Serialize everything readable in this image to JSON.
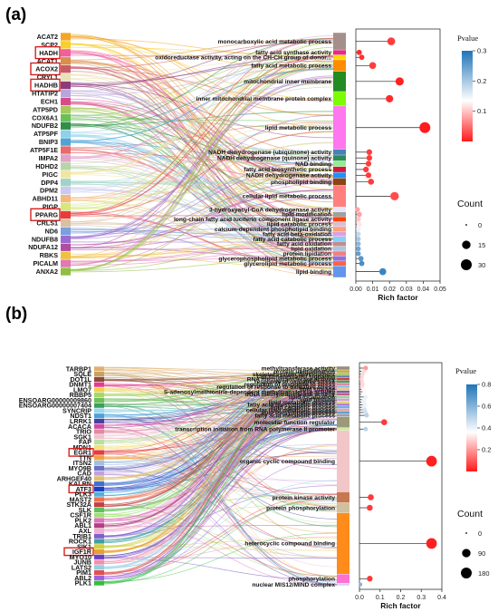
{
  "chart_data": [
    {
      "panel": "(a)",
      "type": "sankey-lollipop",
      "genes": [
        {
          "name": "ACAT2",
          "highlight": false,
          "color": "#f4a623"
        },
        {
          "name": "SCP2",
          "highlight": false,
          "color": "#f7d02a"
        },
        {
          "name": "HADH",
          "highlight": true,
          "color": "#f25ea0"
        },
        {
          "name": "ACAT1",
          "highlight": false,
          "color": "#d98e4a"
        },
        {
          "name": "ACOX2",
          "highlight": true,
          "color": "#c75b68"
        },
        {
          "name": "CRYL1",
          "highlight": false,
          "color": "#e9e2b8"
        },
        {
          "name": "HADHB",
          "highlight": true,
          "color": "#8e3b7b"
        },
        {
          "name": "HTATIP2",
          "highlight": false,
          "color": "#b7a6d9"
        },
        {
          "name": "ECH1",
          "highlight": false,
          "color": "#d84b8b"
        },
        {
          "name": "ATP5PD",
          "highlight": false,
          "color": "#a7c85a"
        },
        {
          "name": "COX6A1",
          "highlight": false,
          "color": "#6bbf59"
        },
        {
          "name": "NDUFB2",
          "highlight": false,
          "color": "#2f8f46"
        },
        {
          "name": "ATP5PF",
          "highlight": false,
          "color": "#8ed1e8"
        },
        {
          "name": "BNIP3",
          "highlight": false,
          "color": "#4fa3d9"
        },
        {
          "name": "ATP5F1E",
          "highlight": false,
          "color": "#e86a6a"
        },
        {
          "name": "IMPA2",
          "highlight": false,
          "color": "#e0a2c6"
        },
        {
          "name": "HDHD2",
          "highlight": false,
          "color": "#b8d4a8"
        },
        {
          "name": "PIGC",
          "highlight": false,
          "color": "#f0e6a0"
        },
        {
          "name": "DPP4",
          "highlight": false,
          "color": "#9fd3c7"
        },
        {
          "name": "DPM2",
          "highlight": false,
          "color": "#c9c9f2"
        },
        {
          "name": "ABHD11",
          "highlight": false,
          "color": "#f2b97c"
        },
        {
          "name": "PIGP",
          "highlight": false,
          "color": "#d6e87a"
        },
        {
          "name": "PPARG",
          "highlight": true,
          "color": "#e83b3b"
        },
        {
          "name": "CRLS1",
          "highlight": false,
          "color": "#d8c0a0"
        },
        {
          "name": "ND6",
          "highlight": false,
          "color": "#7a9fe0"
        },
        {
          "name": "NDUFB8",
          "highlight": false,
          "color": "#9a6ad0"
        },
        {
          "name": "NDUFA12",
          "highlight": false,
          "color": "#b04da0"
        },
        {
          "name": "RBKS",
          "highlight": false,
          "color": "#f0c040"
        },
        {
          "name": "PICALM",
          "highlight": false,
          "color": "#e07ab0"
        },
        {
          "name": "ANXA2",
          "highlight": false,
          "color": "#8fbf3f"
        }
      ],
      "terms": [
        {
          "name": "monocarboxylic acid metabolic process",
          "color": "#a58f8a",
          "rich_factor": 0.021,
          "pvalue": 0.02,
          "count": 12
        },
        {
          "name": "fatty acid synthase activity",
          "color": "#e7298a",
          "rich_factor": 0.002,
          "pvalue": 0.01,
          "count": 3
        },
        {
          "name": "oxidoreductase activity, acting on the CH-CH group of donor...",
          "color": "#ffd700",
          "rich_factor": 0.0035,
          "pvalue": 0.015,
          "count": 3
        },
        {
          "name": "fatty acid metabolic process",
          "color": "#ff8c00",
          "rich_factor": 0.01,
          "pvalue": 0.02,
          "count": 8
        },
        {
          "name": "mitochondrial inner membrane",
          "color": "#228b22",
          "rich_factor": 0.026,
          "pvalue": 0.005,
          "count": 14
        },
        {
          "name": "inner mitochondrial membrane protein complex",
          "color": "#7cfc00",
          "rich_factor": 0.02,
          "pvalue": 0.01,
          "count": 10
        },
        {
          "name": "lipid metabolic process",
          "color": "#ff77ee",
          "rich_factor": 0.041,
          "pvalue": 0.001,
          "count": 30
        },
        {
          "name": "NADH dehydrogenase (ubiquinone) activity",
          "color": "#4682b4",
          "rich_factor": 0.008,
          "pvalue": 0.02,
          "count": 4
        },
        {
          "name": "NADH dehydrogenase (quinone) activity",
          "color": "#2e8b57",
          "rich_factor": 0.008,
          "pvalue": 0.02,
          "count": 4
        },
        {
          "name": "NAD binding",
          "color": "#90ee90",
          "rich_factor": 0.0075,
          "pvalue": 0.02,
          "count": 4
        },
        {
          "name": "fatty acid biosynthetic process",
          "color": "#dc143c",
          "rich_factor": 0.006,
          "pvalue": 0.02,
          "count": 4
        },
        {
          "name": "NADH dehydrogenase activity",
          "color": "#1e90ff",
          "rich_factor": 0.0075,
          "pvalue": 0.02,
          "count": 4
        },
        {
          "name": "phospholipid binding",
          "color": "#8b4513",
          "rich_factor": 0.009,
          "pvalue": 0.02,
          "count": 5
        },
        {
          "name": "cellular lipid metabolic process",
          "color": "#ff7f7f",
          "rich_factor": 0.023,
          "pvalue": 0.03,
          "count": 15
        },
        {
          "name": "3-hydroxyacyl-CoA dehydrogenase activity",
          "color": "#e6e6fa",
          "rich_factor": 0.001,
          "pvalue": 0.08,
          "count": 2
        },
        {
          "name": "lipid modification",
          "color": "#a0a0a0",
          "rich_factor": 0.002,
          "pvalue": 0.08,
          "count": 3
        },
        {
          "name": "long-chain fatty acid luciferin component ligase activity",
          "color": "#ff4500",
          "rich_factor": 0.0015,
          "pvalue": 0.1,
          "count": 2
        },
        {
          "name": "lipid catabolic process",
          "color": "#d8bfd8",
          "rich_factor": 0.002,
          "pvalue": 0.12,
          "count": 3
        },
        {
          "name": "calcium-dependent phospholipid binding",
          "color": "#ffa07a",
          "rich_factor": 0.0015,
          "pvalue": 0.15,
          "count": 2
        },
        {
          "name": "fatty acid beta-oxidation",
          "color": "#dda0dd",
          "rich_factor": 0.0015,
          "pvalue": 0.18,
          "count": 2
        },
        {
          "name": "fatty acid catabolic process",
          "color": "#87cefa",
          "rich_factor": 0.0015,
          "pvalue": 0.2,
          "count": 2
        },
        {
          "name": "fatty acid oxidation",
          "color": "#bc8f8f",
          "rich_factor": 0.0015,
          "pvalue": 0.22,
          "count": 2
        },
        {
          "name": "lipid oxidation",
          "color": "#b0c4de",
          "rich_factor": 0.0015,
          "pvalue": 0.24,
          "count": 2
        },
        {
          "name": "protein lipidation",
          "color": "#f08080",
          "rich_factor": 0.0015,
          "pvalue": 0.25,
          "count": 2
        },
        {
          "name": "glycerophospholipid metabolic process",
          "color": "#9370db",
          "rich_factor": 0.003,
          "pvalue": 0.26,
          "count": 3
        },
        {
          "name": "glycerolipid metabolic process",
          "color": "#ff6347",
          "rich_factor": 0.0035,
          "pvalue": 0.27,
          "count": 3
        },
        {
          "name": "lipid binding",
          "color": "#6495ed",
          "rich_factor": 0.016,
          "pvalue": 0.28,
          "count": 8
        }
      ],
      "xlabel": "Rich factor",
      "xlim": [
        0,
        0.05
      ],
      "xticks": [
        "0.00",
        "0.01",
        "0.02",
        "0.03",
        "0.04",
        "0.05"
      ],
      "xtick_values": [
        0,
        0.01,
        0.02,
        0.03,
        0.04,
        0.05
      ],
      "legend_pvalue": {
        "title": "Pvalue",
        "range": [
          0.0,
          0.3
        ],
        "ticks": [
          "0.3",
          "0.2",
          "0.1"
        ],
        "tick_values": [
          0.3,
          0.2,
          0.1
        ]
      },
      "legend_count": {
        "title": "Count",
        "sizes": [
          "0",
          "15",
          "30"
        ],
        "size_values": [
          0,
          15,
          30
        ]
      }
    },
    {
      "panel": "(b)",
      "type": "sankey-lollipop",
      "genes": [
        {
          "name": "TARBP1",
          "highlight": false,
          "color": "#e0b070"
        },
        {
          "name": "SQLE",
          "highlight": false,
          "color": "#c9a060"
        },
        {
          "name": "DOT1L",
          "highlight": false,
          "color": "#8c4a3a"
        },
        {
          "name": "DNMT1",
          "highlight": false,
          "color": "#e63a8a"
        },
        {
          "name": "LMO7",
          "highlight": false,
          "color": "#f0d050"
        },
        {
          "name": "RBBP5",
          "highlight": false,
          "color": "#a5d66a"
        },
        {
          "name": "ENSOARG00000009860",
          "highlight": false,
          "color": "#6fbf59"
        },
        {
          "name": "ENSOARG00000007404",
          "highlight": false,
          "color": "#3a9f5a"
        },
        {
          "name": "SYNCRIP",
          "highlight": false,
          "color": "#9ad7e8"
        },
        {
          "name": "NDST1",
          "highlight": false,
          "color": "#4fa0d8"
        },
        {
          "name": "LRRK1",
          "highlight": false,
          "color": "#4a3fa0"
        },
        {
          "name": "ACACA",
          "highlight": false,
          "color": "#d04aa0"
        },
        {
          "name": "TRIO",
          "highlight": false,
          "color": "#e08aa0"
        },
        {
          "name": "SGK1",
          "highlight": false,
          "color": "#f0c0d0"
        },
        {
          "name": "FAP",
          "highlight": false,
          "color": "#b8e0a0"
        },
        {
          "name": "MDN1",
          "highlight": false,
          "color": "#f4e080"
        },
        {
          "name": "EGR1",
          "highlight": true,
          "color": "#e83b3b"
        },
        {
          "name": "TTN",
          "highlight": false,
          "color": "#f0a040"
        },
        {
          "name": "ITSN2",
          "highlight": false,
          "color": "#a0c0e0"
        },
        {
          "name": "MYO9B",
          "highlight": false,
          "color": "#7070c0"
        },
        {
          "name": "CAD",
          "highlight": false,
          "color": "#c0a0e0"
        },
        {
          "name": "ARHGEF40",
          "highlight": false,
          "color": "#e0c070"
        },
        {
          "name": "KALRN",
          "highlight": false,
          "color": "#3f6fd0"
        },
        {
          "name": "ATF3",
          "highlight": true,
          "color": "#1f3fbf"
        },
        {
          "name": "PLK3",
          "highlight": false,
          "color": "#50b0e0"
        },
        {
          "name": "MAST2",
          "highlight": false,
          "color": "#f07050"
        },
        {
          "name": "STK32A",
          "highlight": false,
          "color": "#c04040"
        },
        {
          "name": "SLK",
          "highlight": false,
          "color": "#60c060"
        },
        {
          "name": "CSF1R",
          "highlight": false,
          "color": "#a0e070"
        },
        {
          "name": "PLK2",
          "highlight": false,
          "color": "#e070c0"
        },
        {
          "name": "ABL1",
          "highlight": false,
          "color": "#b04080"
        },
        {
          "name": "AXL",
          "highlight": false,
          "color": "#f0b0d0"
        },
        {
          "name": "TRIB1",
          "highlight": false,
          "color": "#8060d0"
        },
        {
          "name": "ROCK1",
          "highlight": false,
          "color": "#40a0a0"
        },
        {
          "name": "SIK1",
          "highlight": false,
          "color": "#d0d040"
        },
        {
          "name": "IGF1R",
          "highlight": true,
          "color": "#e8a030"
        },
        {
          "name": "MYO10",
          "highlight": false,
          "color": "#6a40c0"
        },
        {
          "name": "JUNB",
          "highlight": false,
          "color": "#f090b0"
        },
        {
          "name": "LATS2",
          "highlight": false,
          "color": "#90d0e0"
        },
        {
          "name": "PIM1",
          "highlight": false,
          "color": "#e05050"
        },
        {
          "name": "ABL2",
          "highlight": false,
          "color": "#a060e0"
        },
        {
          "name": "PLK1",
          "highlight": false,
          "color": "#30c040"
        }
      ],
      "terms": [
        {
          "name": "methyltransferase activity",
          "color": "#9c8a80",
          "rich_factor": 0.03,
          "pvalue": 0.2,
          "count": 10
        },
        {
          "name": "protein ubiquitination",
          "color": "#c0b050",
          "rich_factor": 0.02,
          "pvalue": 0.3,
          "count": 8
        },
        {
          "name": "skeletal system development",
          "color": "#a0c060",
          "rich_factor": 0.015,
          "pvalue": 0.3,
          "count": 6
        },
        {
          "name": "calcium-mediated signaling",
          "color": "#6080c0",
          "rich_factor": 0.012,
          "pvalue": 0.3,
          "count": 5
        },
        {
          "name": "RNA methyltransferase activity",
          "color": "#d04040",
          "rich_factor": 0.01,
          "pvalue": 0.3,
          "count": 4
        },
        {
          "name": "response to oxidative stress",
          "color": "#40a060",
          "rich_factor": 0.012,
          "pvalue": 0.3,
          "count": 5
        },
        {
          "name": "regulation of response to stress",
          "color": "#e080a0",
          "rich_factor": 0.015,
          "pvalue": 0.3,
          "count": 6
        },
        {
          "name": "regulation of response to oxidative stress",
          "color": "#80c0e0",
          "rich_factor": 0.012,
          "pvalue": 0.3,
          "count": 5
        },
        {
          "name": "lipid storage",
          "color": "#f0c080",
          "rich_factor": 0.02,
          "pvalue": 0.35,
          "count": 6
        },
        {
          "name": "S-adenosylmethionine-dependent methyltransferase activity",
          "color": "#7060b0",
          "rich_factor": 0.025,
          "pvalue": 0.35,
          "count": 7
        },
        {
          "name": "tRNA methyltransferase activity",
          "color": "#c06080",
          "rich_factor": 0.018,
          "pvalue": 0.35,
          "count": 5
        },
        {
          "name": "lipid localization",
          "color": "#a0d0a0",
          "rich_factor": 0.03,
          "pvalue": 0.4,
          "count": 8
        },
        {
          "name": "lipid binding",
          "color": "#d0a0e0",
          "rich_factor": 0.022,
          "pvalue": 0.4,
          "count": 7
        },
        {
          "name": "lipid metabolic process",
          "color": "#e0d070",
          "rich_factor": 0.02,
          "pvalue": 0.4,
          "count": 7
        },
        {
          "name": "fatty acid biosynthetic process",
          "color": "#b070d0",
          "rich_factor": 0.025,
          "pvalue": 0.4,
          "count": 6
        },
        {
          "name": "lipid catabolic process",
          "color": "#70b0e0",
          "rich_factor": 0.022,
          "pvalue": 0.4,
          "count": 6
        },
        {
          "name": "cellular lipid metabolic process",
          "color": "#f0a0a0",
          "rich_factor": 0.025,
          "pvalue": 0.45,
          "count": 7
        },
        {
          "name": "lipid biosynthetic process",
          "color": "#60a0d0",
          "rich_factor": 0.03,
          "pvalue": 0.45,
          "count": 8
        },
        {
          "name": "fatty acid metabolic process",
          "color": "#a0a0a0",
          "rich_factor": 0.035,
          "pvalue": 0.5,
          "count": 8
        },
        {
          "name": "molecular function regulator",
          "color": "#9a9a7a",
          "rich_factor": 0.12,
          "pvalue": 0.05,
          "count": 30
        },
        {
          "name": "transcription initiation from RNA polymerase II promoter",
          "color": "#cfe8a0",
          "rich_factor": 0.03,
          "pvalue": 0.5,
          "count": 8
        },
        {
          "name": "organic cyclic compound binding",
          "color": "#f2c6c6",
          "rich_factor": 0.35,
          "pvalue": 0.01,
          "count": 170
        },
        {
          "name": "protein kinase activity",
          "color": "#c87850",
          "rich_factor": 0.055,
          "pvalue": 0.05,
          "count": 30
        },
        {
          "name": "protein phosphorylation",
          "color": "#d0c0a0",
          "rich_factor": 0.05,
          "pvalue": 0.05,
          "count": 28
        },
        {
          "name": "heterocyclic compound binding",
          "color": "#ff8c1a",
          "rich_factor": 0.35,
          "pvalue": 0.01,
          "count": 170
        },
        {
          "name": "phosphorylation",
          "color": "#ff70d0",
          "rich_factor": 0.05,
          "pvalue": 0.05,
          "count": 25
        },
        {
          "name": "nuclear MIS12/MIND complex",
          "color": "#d8d0f0",
          "rich_factor": 0.005,
          "pvalue": 0.6,
          "count": 2
        }
      ],
      "xlabel": "Rich factor",
      "xlim": [
        0,
        0.4
      ],
      "xticks": [
        "0.0",
        "0.1",
        "0.2",
        "0.3",
        "0.4"
      ],
      "xtick_values": [
        0,
        0.1,
        0.2,
        0.3,
        0.4
      ],
      "legend_pvalue": {
        "title": "Pvalue",
        "range": [
          0.0,
          0.8
        ],
        "ticks": [
          "0.8",
          "0.6",
          "0.4",
          "0.2"
        ],
        "tick_values": [
          0.8,
          0.6,
          0.4,
          0.2
        ]
      },
      "legend_count": {
        "title": "Count",
        "sizes": [
          "0",
          "90",
          "180"
        ],
        "size_values": [
          0,
          90,
          180
        ]
      }
    }
  ]
}
